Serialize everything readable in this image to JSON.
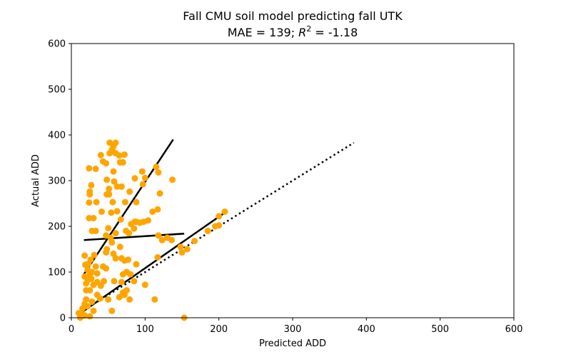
{
  "chart_data": {
    "type": "scatter",
    "title_line1": "Fall CMU soil model predicting fall UTK",
    "title_line2_prefix": "MAE = 139; ",
    "title_line2_r": "R",
    "title_line2_sup": "2",
    "title_line2_suffix": " = -1.18",
    "xlabel": "Predicted ADD",
    "ylabel": "Actual ADD",
    "xlim": [
      0,
      600
    ],
    "ylim": [
      0,
      600
    ],
    "xticks": [
      0,
      100,
      200,
      300,
      400,
      500,
      600
    ],
    "yticks": [
      0,
      100,
      200,
      300,
      400,
      500,
      600
    ],
    "grid": false,
    "colors": {
      "points": "#ffa500",
      "lines": "#000000"
    },
    "points": [
      [
        52,
        383
      ],
      [
        60,
        383
      ],
      [
        57,
        375
      ],
      [
        55,
        368
      ],
      [
        52,
        360
      ],
      [
        60,
        360
      ],
      [
        65,
        355
      ],
      [
        72,
        357
      ],
      [
        40,
        356
      ],
      [
        43,
        342
      ],
      [
        47,
        338
      ],
      [
        66,
        340
      ],
      [
        70,
        340
      ],
      [
        57,
        320
      ],
      [
        96,
        320
      ],
      [
        115,
        330
      ],
      [
        118,
        318
      ],
      [
        24,
        327
      ],
      [
        33,
        326
      ],
      [
        86,
        305
      ],
      [
        100,
        306
      ],
      [
        137,
        302
      ],
      [
        48,
        302
      ],
      [
        58,
        298
      ],
      [
        97,
        292
      ],
      [
        68,
        287
      ],
      [
        62,
        287
      ],
      [
        27,
        290
      ],
      [
        51,
        282
      ],
      [
        79,
        276
      ],
      [
        25,
        276
      ],
      [
        48,
        270
      ],
      [
        51,
        270
      ],
      [
        120,
        272
      ],
      [
        25,
        270
      ],
      [
        24,
        252
      ],
      [
        34,
        253
      ],
      [
        56,
        253
      ],
      [
        73,
        253
      ],
      [
        88,
        253
      ],
      [
        41,
        232
      ],
      [
        54,
        230
      ],
      [
        62,
        233
      ],
      [
        110,
        232
      ],
      [
        117,
        237
      ],
      [
        24,
        218
      ],
      [
        30,
        218
      ],
      [
        67,
        215
      ],
      [
        86,
        210
      ],
      [
        93,
        208
      ],
      [
        98,
        210
      ],
      [
        104,
        213
      ],
      [
        81,
        205
      ],
      [
        85,
        195
      ],
      [
        88,
        210
      ],
      [
        74,
        190
      ],
      [
        78,
        185
      ],
      [
        28,
        190
      ],
      [
        33,
        190
      ],
      [
        50,
        196
      ],
      [
        60,
        185
      ],
      [
        47,
        180
      ],
      [
        53,
        175
      ],
      [
        118,
        180
      ],
      [
        123,
        170
      ],
      [
        136,
        170
      ],
      [
        130,
        175
      ],
      [
        55,
        165
      ],
      [
        66,
        155
      ],
      [
        48,
        150
      ],
      [
        57,
        140
      ],
      [
        47,
        143
      ],
      [
        60,
        130
      ],
      [
        68,
        130
      ],
      [
        77,
        127
      ],
      [
        72,
        125
      ],
      [
        88,
        117
      ],
      [
        117,
        132
      ],
      [
        31,
        137
      ],
      [
        18,
        136
      ],
      [
        26,
        127
      ],
      [
        23,
        118
      ],
      [
        19,
        116
      ],
      [
        33,
        112
      ],
      [
        43,
        112
      ],
      [
        47,
        108
      ],
      [
        22,
        105
      ],
      [
        28,
        100
      ],
      [
        35,
        97
      ],
      [
        25,
        95
      ],
      [
        18,
        90
      ],
      [
        22,
        83
      ],
      [
        27,
        85
      ],
      [
        35,
        78
      ],
      [
        44,
        80
      ],
      [
        58,
        80
      ],
      [
        68,
        78
      ],
      [
        20,
        75
      ],
      [
        30,
        72
      ],
      [
        70,
        95
      ],
      [
        75,
        100
      ],
      [
        80,
        95
      ],
      [
        85,
        80
      ],
      [
        100,
        72
      ],
      [
        75,
        60
      ],
      [
        70,
        55
      ],
      [
        25,
        60
      ],
      [
        35,
        50
      ],
      [
        20,
        40
      ],
      [
        18,
        30
      ],
      [
        22,
        25
      ],
      [
        15,
        20
      ],
      [
        10,
        10
      ],
      [
        14,
        8
      ],
      [
        18,
        5
      ],
      [
        25,
        3
      ],
      [
        30,
        15
      ],
      [
        39,
        42
      ],
      [
        50,
        40
      ],
      [
        79,
        40
      ],
      [
        113,
        40
      ],
      [
        55,
        15
      ],
      [
        153,
        0
      ],
      [
        12,
        0
      ],
      [
        150,
        143
      ],
      [
        148,
        155
      ],
      [
        157,
        150
      ],
      [
        167,
        168
      ],
      [
        200,
        202
      ],
      [
        200,
        222
      ],
      [
        208,
        232
      ],
      [
        185,
        190
      ],
      [
        195,
        200
      ],
      [
        28,
        35
      ],
      [
        20,
        60
      ],
      [
        40,
        70
      ],
      [
        65,
        45
      ],
      [
        72,
        50
      ]
    ],
    "lines": [
      {
        "style": "solid",
        "x": [
          17,
          138
        ],
        "y": [
          95,
          390
        ]
      },
      {
        "style": "solid",
        "x": [
          17,
          153
        ],
        "y": [
          170,
          184
        ]
      },
      {
        "style": "solid",
        "x": [
          8,
          208
        ],
        "y": [
          5,
          230
        ]
      },
      {
        "style": "dotted",
        "x": [
          8,
          383
        ],
        "y": [
          8,
          383
        ]
      }
    ]
  }
}
